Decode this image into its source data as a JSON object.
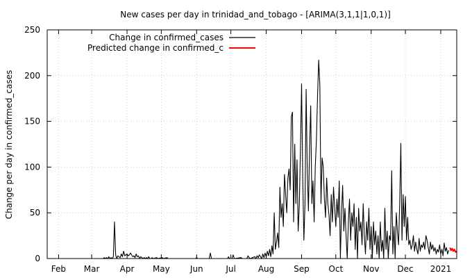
{
  "chart_data": {
    "type": "line",
    "title": "New cases per day in trinidad_and_tobago -  [ARIMA(3,1,1|1,0,1)]",
    "xlabel": "",
    "ylabel": "Change per day in confirmed_cases",
    "ylim": [
      0,
      250
    ],
    "xlim": [
      "2020-01-22",
      "2021-01-15"
    ],
    "y_ticks": [
      0,
      50,
      100,
      150,
      200,
      250
    ],
    "x_ticks": [
      {
        "label": "Feb",
        "date": "2020-02-01"
      },
      {
        "label": "Mar",
        "date": "2020-03-01"
      },
      {
        "label": "Apr",
        "date": "2020-04-01"
      },
      {
        "label": "May",
        "date": "2020-05-01"
      },
      {
        "label": "Jun",
        "date": "2020-06-01"
      },
      {
        "label": "Jul",
        "date": "2020-07-01"
      },
      {
        "label": "Aug",
        "date": "2020-08-01"
      },
      {
        "label": "Sep",
        "date": "2020-09-01"
      },
      {
        "label": "Oct",
        "date": "2020-10-01"
      },
      {
        "label": "Nov",
        "date": "2020-11-01"
      },
      {
        "label": "Dec",
        "date": "2020-12-01"
      },
      {
        "label": "2021",
        "date": "2021-01-01"
      }
    ],
    "grid": true,
    "legend_position": "top-left",
    "series": [
      {
        "name": "Change in confirmed_cases",
        "color": "#000000",
        "points": [
          [
            "2020-01-22",
            0
          ],
          [
            "2020-03-11",
            0
          ],
          [
            "2020-03-12",
            1
          ],
          [
            "2020-03-13",
            0
          ],
          [
            "2020-03-14",
            1
          ],
          [
            "2020-03-15",
            0
          ],
          [
            "2020-03-16",
            2
          ],
          [
            "2020-03-17",
            0
          ],
          [
            "2020-03-18",
            1
          ],
          [
            "2020-03-19",
            0
          ],
          [
            "2020-03-20",
            2
          ],
          [
            "2020-03-21",
            40
          ],
          [
            "2020-03-22",
            4
          ],
          [
            "2020-03-23",
            0
          ],
          [
            "2020-03-24",
            3
          ],
          [
            "2020-03-25",
            2
          ],
          [
            "2020-03-26",
            1
          ],
          [
            "2020-03-27",
            5
          ],
          [
            "2020-03-28",
            2
          ],
          [
            "2020-03-29",
            8
          ],
          [
            "2020-03-30",
            3
          ],
          [
            "2020-03-31",
            4
          ],
          [
            "2020-04-01",
            5
          ],
          [
            "2020-04-02",
            3
          ],
          [
            "2020-04-03",
            4
          ],
          [
            "2020-04-04",
            6
          ],
          [
            "2020-04-05",
            4
          ],
          [
            "2020-04-06",
            2
          ],
          [
            "2020-04-07",
            3
          ],
          [
            "2020-04-08",
            1
          ],
          [
            "2020-04-09",
            5
          ],
          [
            "2020-04-10",
            2
          ],
          [
            "2020-04-11",
            3
          ],
          [
            "2020-04-12",
            0
          ],
          [
            "2020-04-13",
            2
          ],
          [
            "2020-04-14",
            1
          ],
          [
            "2020-04-15",
            0
          ],
          [
            "2020-04-16",
            1
          ],
          [
            "2020-04-17",
            0
          ],
          [
            "2020-04-18",
            1
          ],
          [
            "2020-04-19",
            0
          ],
          [
            "2020-04-20",
            2
          ],
          [
            "2020-04-21",
            0
          ],
          [
            "2020-04-22",
            0
          ],
          [
            "2020-04-23",
            1
          ],
          [
            "2020-04-24",
            0
          ],
          [
            "2020-04-27",
            1
          ],
          [
            "2020-04-28",
            0
          ],
          [
            "2020-05-02",
            1
          ],
          [
            "2020-05-03",
            0
          ],
          [
            "2020-05-06",
            1
          ],
          [
            "2020-05-07",
            0
          ],
          [
            "2020-05-31",
            0
          ],
          [
            "2020-06-01",
            1
          ],
          [
            "2020-06-02",
            0
          ],
          [
            "2020-06-12",
            0
          ],
          [
            "2020-06-13",
            6
          ],
          [
            "2020-06-14",
            0
          ],
          [
            "2020-06-28",
            0
          ],
          [
            "2020-06-29",
            2
          ],
          [
            "2020-06-30",
            0
          ],
          [
            "2020-07-02",
            0
          ],
          [
            "2020-07-03",
            4
          ],
          [
            "2020-07-04",
            0
          ],
          [
            "2020-07-10",
            1
          ],
          [
            "2020-07-11",
            0
          ],
          [
            "2020-07-15",
            0
          ],
          [
            "2020-07-16",
            3
          ],
          [
            "2020-07-17",
            1
          ],
          [
            "2020-07-18",
            0
          ],
          [
            "2020-07-22",
            2
          ],
          [
            "2020-07-23",
            0
          ],
          [
            "2020-07-24",
            3
          ],
          [
            "2020-07-25",
            1
          ],
          [
            "2020-07-26",
            4
          ],
          [
            "2020-07-27",
            2
          ],
          [
            "2020-07-28",
            0
          ],
          [
            "2020-07-29",
            5
          ],
          [
            "2020-07-30",
            1
          ],
          [
            "2020-07-31",
            6
          ],
          [
            "2020-08-01",
            2
          ],
          [
            "2020-08-02",
            8
          ],
          [
            "2020-08-03",
            3
          ],
          [
            "2020-08-04",
            10
          ],
          [
            "2020-08-05",
            2
          ],
          [
            "2020-08-06",
            14
          ],
          [
            "2020-08-07",
            5
          ],
          [
            "2020-08-08",
            50
          ],
          [
            "2020-08-09",
            10
          ],
          [
            "2020-08-10",
            18
          ],
          [
            "2020-08-11",
            28
          ],
          [
            "2020-08-12",
            12
          ],
          [
            "2020-08-13",
            78
          ],
          [
            "2020-08-14",
            45
          ],
          [
            "2020-08-15",
            60
          ],
          [
            "2020-08-16",
            35
          ],
          [
            "2020-08-17",
            92
          ],
          [
            "2020-08-18",
            70
          ],
          [
            "2020-08-19",
            50
          ],
          [
            "2020-08-20",
            88
          ],
          [
            "2020-08-21",
            98
          ],
          [
            "2020-08-22",
            75
          ],
          [
            "2020-08-23",
            155
          ],
          [
            "2020-08-24",
            160
          ],
          [
            "2020-08-25",
            40
          ],
          [
            "2020-08-26",
            125
          ],
          [
            "2020-08-27",
            60
          ],
          [
            "2020-08-28",
            108
          ],
          [
            "2020-08-29",
            30
          ],
          [
            "2020-08-30",
            58
          ],
          [
            "2020-08-31",
            120
          ],
          [
            "2020-09-01",
            191
          ],
          [
            "2020-09-02",
            90
          ],
          [
            "2020-09-03",
            20
          ],
          [
            "2020-09-04",
            60
          ],
          [
            "2020-09-05",
            185
          ],
          [
            "2020-09-06",
            95
          ],
          [
            "2020-09-07",
            52
          ],
          [
            "2020-09-08",
            120
          ],
          [
            "2020-09-09",
            167
          ],
          [
            "2020-09-10",
            60
          ],
          [
            "2020-09-11",
            85
          ],
          [
            "2020-09-12",
            40
          ],
          [
            "2020-09-13",
            100
          ],
          [
            "2020-09-14",
            130
          ],
          [
            "2020-09-15",
            178
          ],
          [
            "2020-09-16",
            217
          ],
          [
            "2020-09-17",
            190
          ],
          [
            "2020-09-18",
            60
          ],
          [
            "2020-09-19",
            110
          ],
          [
            "2020-09-20",
            100
          ],
          [
            "2020-09-21",
            65
          ],
          [
            "2020-09-22",
            45
          ],
          [
            "2020-09-23",
            88
          ],
          [
            "2020-09-24",
            60
          ],
          [
            "2020-09-25",
            48
          ],
          [
            "2020-09-26",
            25
          ],
          [
            "2020-09-27",
            70
          ],
          [
            "2020-09-28",
            40
          ],
          [
            "2020-09-29",
            78
          ],
          [
            "2020-09-30",
            55
          ],
          [
            "2020-10-01",
            35
          ],
          [
            "2020-10-02",
            65
          ],
          [
            "2020-10-03",
            45
          ],
          [
            "2020-10-04",
            85
          ],
          [
            "2020-10-05",
            0
          ],
          [
            "2020-10-06",
            50
          ],
          [
            "2020-10-07",
            80
          ],
          [
            "2020-10-08",
            30
          ],
          [
            "2020-10-09",
            55
          ],
          [
            "2020-10-10",
            25
          ],
          [
            "2020-10-11",
            0
          ],
          [
            "2020-10-12",
            40
          ],
          [
            "2020-10-13",
            65
          ],
          [
            "2020-10-14",
            20
          ],
          [
            "2020-10-15",
            50
          ],
          [
            "2020-10-16",
            35
          ],
          [
            "2020-10-17",
            60
          ],
          [
            "2020-10-18",
            10
          ],
          [
            "2020-10-19",
            45
          ],
          [
            "2020-10-20",
            0
          ],
          [
            "2020-10-21",
            55
          ],
          [
            "2020-10-22",
            30
          ],
          [
            "2020-10-23",
            40
          ],
          [
            "2020-10-24",
            15
          ],
          [
            "2020-10-25",
            60
          ],
          [
            "2020-10-26",
            25
          ],
          [
            "2020-10-27",
            5
          ],
          [
            "2020-10-28",
            40
          ],
          [
            "2020-10-29",
            20
          ],
          [
            "2020-10-30",
            55
          ],
          [
            "2020-10-31",
            10
          ],
          [
            "2020-11-01",
            35
          ],
          [
            "2020-11-02",
            0
          ],
          [
            "2020-11-03",
            40
          ],
          [
            "2020-11-04",
            15
          ],
          [
            "2020-11-05",
            30
          ],
          [
            "2020-11-06",
            5
          ],
          [
            "2020-11-07",
            25
          ],
          [
            "2020-11-08",
            0
          ],
          [
            "2020-11-09",
            40
          ],
          [
            "2020-11-10",
            8
          ],
          [
            "2020-11-11",
            20
          ],
          [
            "2020-11-12",
            0
          ],
          [
            "2020-11-13",
            55
          ],
          [
            "2020-11-14",
            10
          ],
          [
            "2020-11-15",
            30
          ],
          [
            "2020-11-16",
            0
          ],
          [
            "2020-11-17",
            25
          ],
          [
            "2020-11-18",
            20
          ],
          [
            "2020-11-19",
            96
          ],
          [
            "2020-11-20",
            5
          ],
          [
            "2020-11-21",
            35
          ],
          [
            "2020-11-22",
            0
          ],
          [
            "2020-11-23",
            50
          ],
          [
            "2020-11-24",
            30
          ],
          [
            "2020-11-25",
            15
          ],
          [
            "2020-11-26",
            60
          ],
          [
            "2020-11-27",
            126
          ],
          [
            "2020-11-28",
            20
          ],
          [
            "2020-11-29",
            70
          ],
          [
            "2020-11-30",
            35
          ],
          [
            "2020-12-01",
            68
          ],
          [
            "2020-12-02",
            20
          ],
          [
            "2020-12-03",
            45
          ],
          [
            "2020-12-04",
            15
          ],
          [
            "2020-12-05",
            20
          ],
          [
            "2020-12-06",
            10
          ],
          [
            "2020-12-07",
            15
          ],
          [
            "2020-12-08",
            25
          ],
          [
            "2020-12-09",
            8
          ],
          [
            "2020-12-10",
            18
          ],
          [
            "2020-12-11",
            10
          ],
          [
            "2020-12-12",
            5
          ],
          [
            "2020-12-13",
            22
          ],
          [
            "2020-12-14",
            8
          ],
          [
            "2020-12-15",
            15
          ],
          [
            "2020-12-16",
            12
          ],
          [
            "2020-12-17",
            18
          ],
          [
            "2020-12-18",
            10
          ],
          [
            "2020-12-19",
            25
          ],
          [
            "2020-12-20",
            20
          ],
          [
            "2020-12-21",
            12
          ],
          [
            "2020-12-22",
            5
          ],
          [
            "2020-12-23",
            18
          ],
          [
            "2020-12-24",
            10
          ],
          [
            "2020-12-25",
            15
          ],
          [
            "2020-12-26",
            8
          ],
          [
            "2020-12-27",
            12
          ],
          [
            "2020-12-28",
            5
          ],
          [
            "2020-12-29",
            10
          ],
          [
            "2020-12-30",
            7
          ],
          [
            "2020-12-31",
            15
          ],
          [
            "2021-01-01",
            5
          ],
          [
            "2021-01-02",
            10
          ],
          [
            "2021-01-03",
            3
          ],
          [
            "2021-01-04",
            17
          ],
          [
            "2021-01-05",
            8
          ],
          [
            "2021-01-06",
            12
          ],
          [
            "2021-01-07",
            5
          ],
          [
            "2021-01-08",
            9
          ]
        ]
      },
      {
        "name": "Predicted change in confirmed_c",
        "color": "#ff0000",
        "points": [
          [
            "2021-01-09",
            12
          ],
          [
            "2021-01-10",
            9
          ],
          [
            "2021-01-11",
            11
          ],
          [
            "2021-01-12",
            8
          ],
          [
            "2021-01-13",
            10
          ],
          [
            "2021-01-14",
            7
          ],
          [
            "2021-01-15",
            8
          ]
        ]
      }
    ]
  }
}
